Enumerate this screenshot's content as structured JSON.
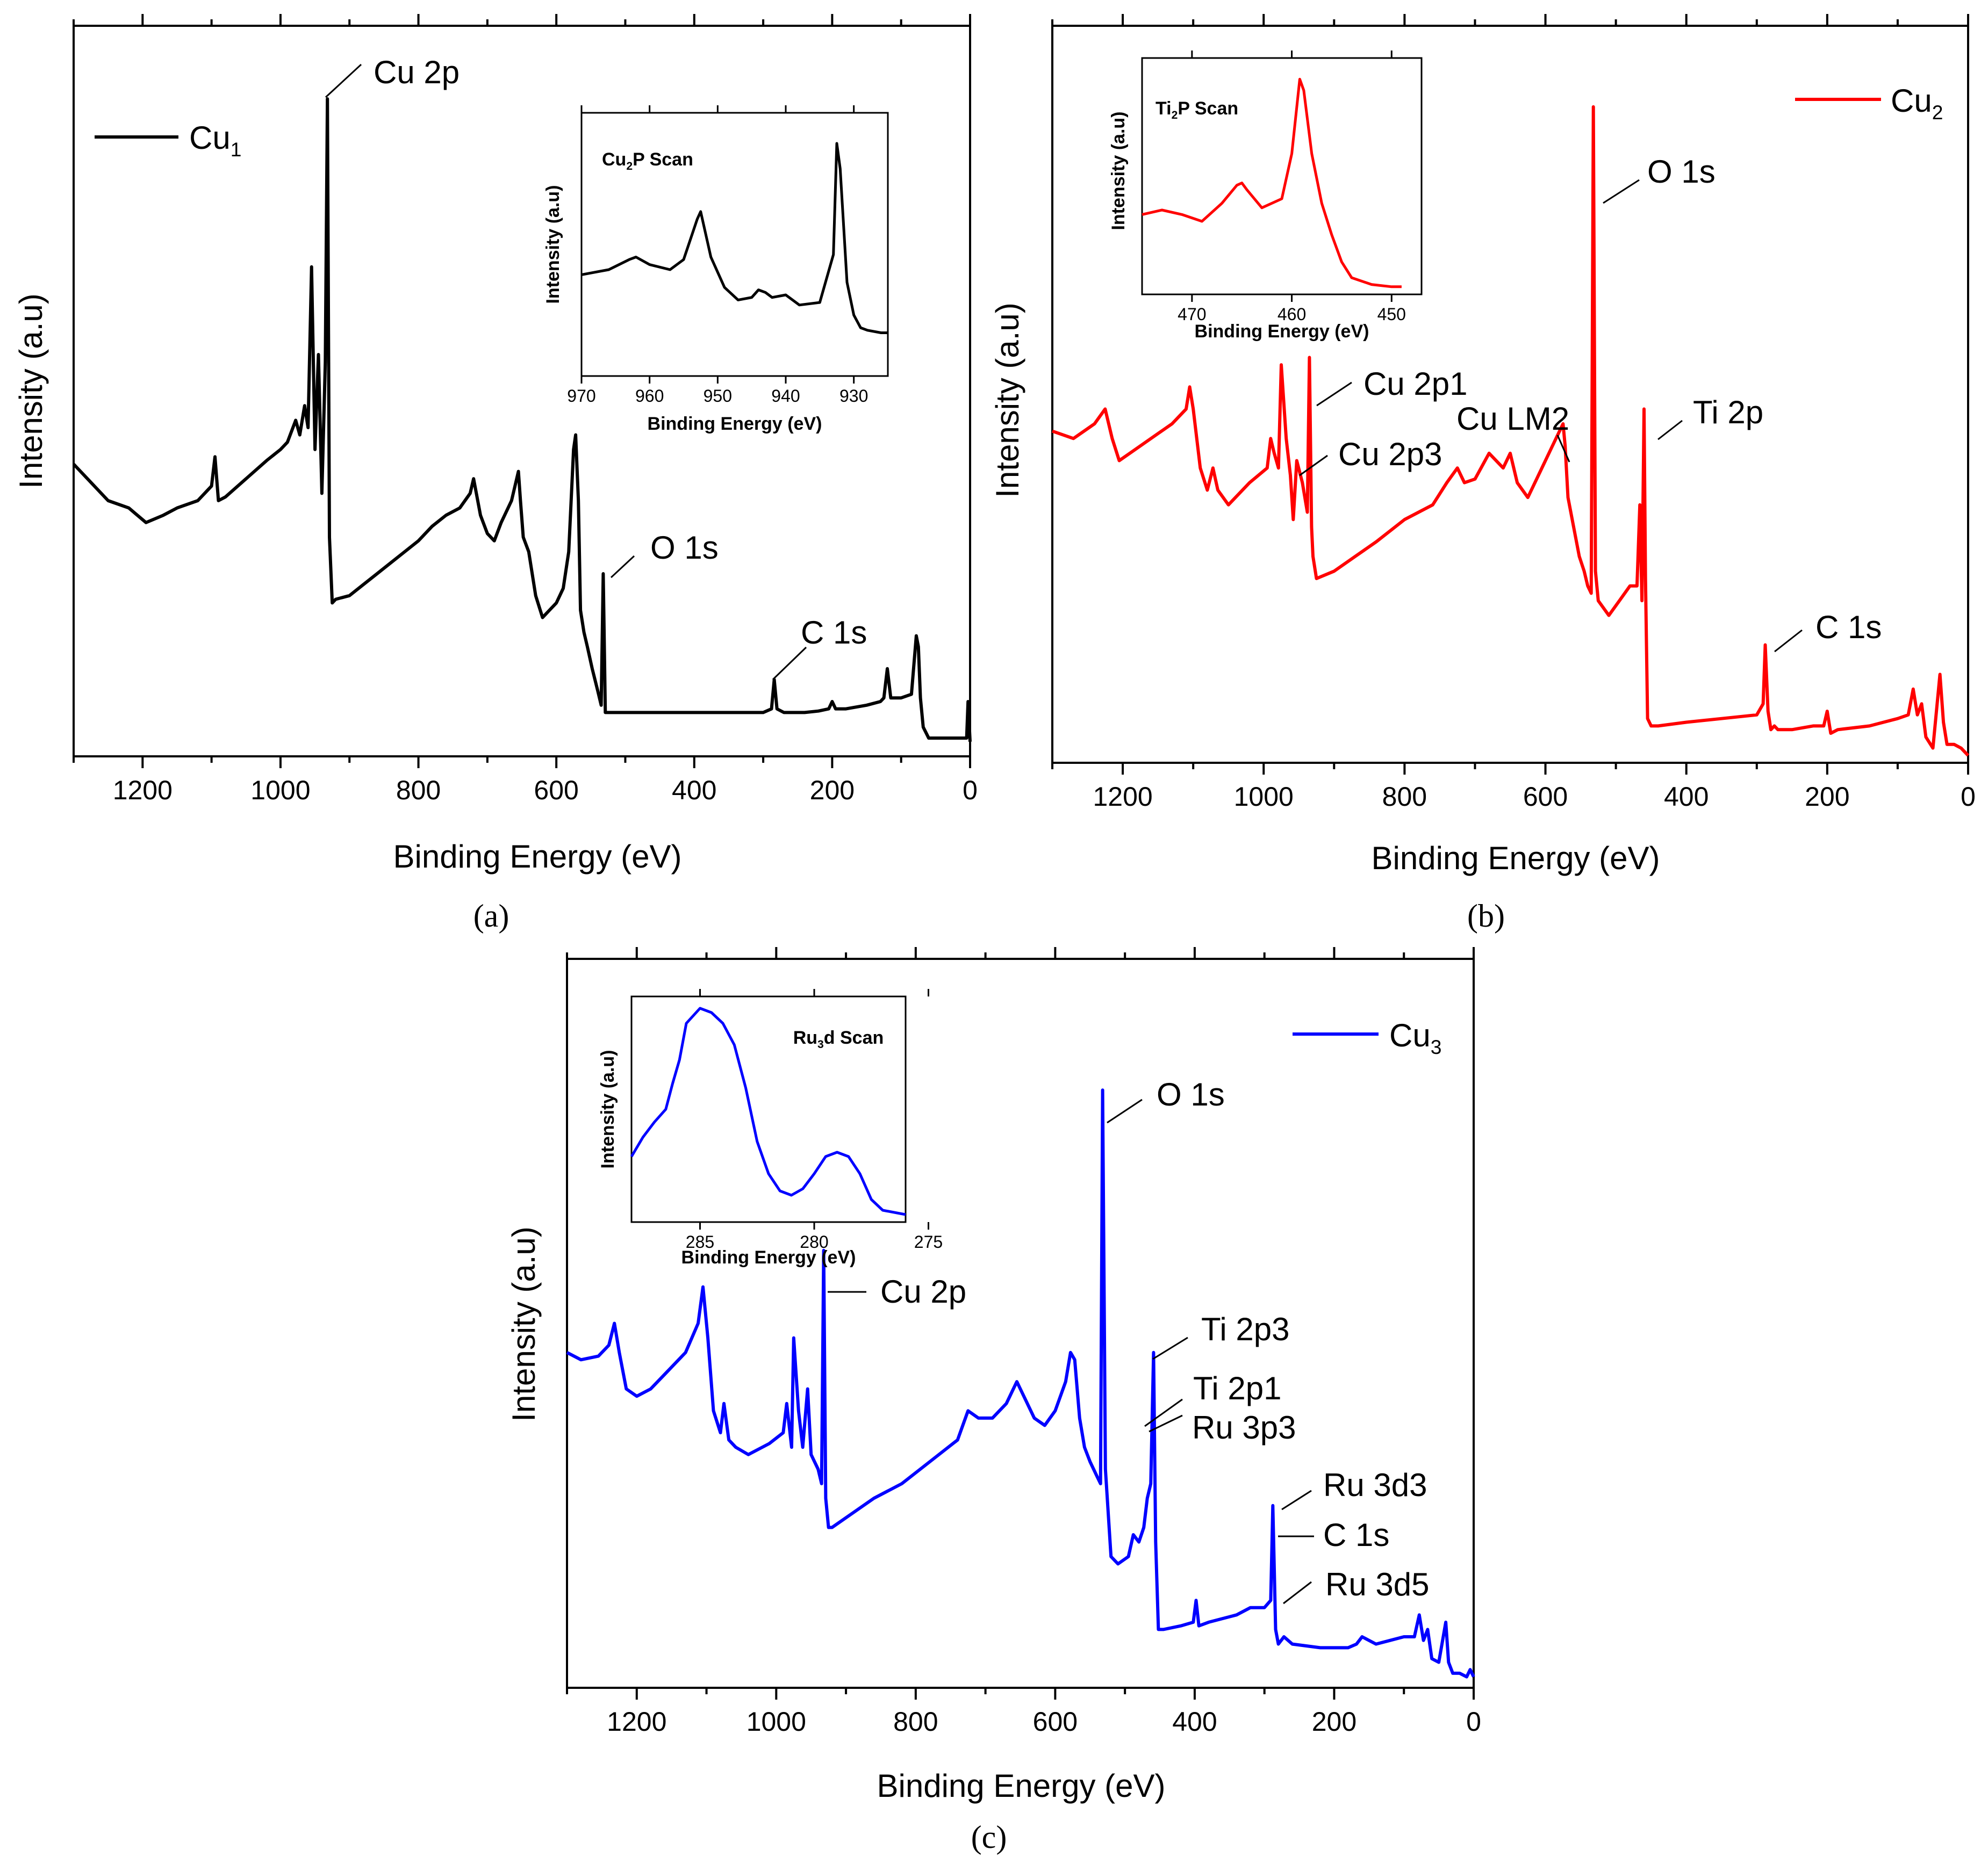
{
  "chart_data": [
    {
      "type": "line",
      "panel_label": "(a)",
      "xlabel": "Binding Energy (eV)",
      "ylabel": "Intensity (a.u)",
      "xlim": [
        1300,
        0
      ],
      "ylim": [
        0,
        100
      ],
      "xticks": [
        "1200",
        "1000",
        "800",
        "600",
        "400",
        "200",
        "0"
      ],
      "color": "#000000",
      "legend": {
        "base": "Cu",
        "sub": "1",
        "placement": "top-left"
      },
      "series": [
        {
          "name": "Cu1",
          "x": [
            1300,
            1280,
            1250,
            1220,
            1195,
            1170,
            1150,
            1120,
            1100,
            1095,
            1090,
            1080,
            1050,
            1020,
            1000,
            990,
            978,
            972,
            965,
            960,
            955,
            950,
            945,
            940,
            935,
            932,
            929,
            925,
            920,
            900,
            880,
            860,
            840,
            820,
            800,
            780,
            760,
            740,
            725,
            720,
            710,
            700,
            690,
            680,
            665,
            655,
            652,
            648,
            640,
            630,
            620,
            610,
            600,
            590,
            582,
            575,
            572,
            568,
            565,
            560,
            555,
            548,
            540,
            535,
            532,
            529,
            525,
            510,
            480,
            450,
            420,
            400,
            380,
            340,
            300,
            288,
            284,
            280,
            270,
            240,
            220,
            205,
            200,
            195,
            180,
            150,
            130,
            125,
            120,
            115,
            100,
            85,
            78,
            75,
            72,
            68,
            60,
            40,
            20,
            10,
            5,
            3,
            0
          ],
          "y": [
            40.0,
            38.0,
            35.0,
            34.0,
            32.0,
            33.0,
            34.0,
            35.0,
            37.0,
            41.0,
            35.0,
            35.5,
            38.0,
            40.5,
            42.0,
            43.0,
            46.0,
            44.0,
            48.0,
            45.0,
            67.0,
            42.0,
            55.0,
            36.0,
            54.0,
            90.0,
            30.0,
            21.0,
            21.5,
            22.0,
            23.5,
            25.0,
            26.5,
            28.0,
            29.5,
            31.5,
            33.0,
            34.0,
            36.0,
            38.0,
            33.0,
            30.5,
            29.5,
            32.0,
            35.0,
            39.0,
            35.0,
            30.0,
            28.0,
            22.0,
            19.0,
            20.0,
            21.0,
            23.0,
            28.0,
            42.0,
            44.0,
            35.0,
            20.0,
            17.0,
            15.0,
            12.0,
            9.0,
            7.0,
            25.0,
            6.0,
            6.0,
            6.0,
            6.0,
            6.0,
            6.0,
            6.0,
            6.0,
            6.0,
            6.0,
            6.5,
            10.5,
            6.5,
            6.0,
            6.0,
            6.2,
            6.5,
            7.5,
            6.5,
            6.5,
            7.0,
            7.5,
            8.0,
            12.0,
            8.0,
            8.0,
            8.5,
            16.5,
            15.0,
            8.0,
            4.0,
            2.5,
            2.5,
            2.5,
            2.5,
            2.5,
            7.5,
            2.0
          ]
        }
      ],
      "annotations": [
        "Cu 2p",
        "O 1s",
        "C 1s"
      ],
      "inset": {
        "title_base": "Cu",
        "title_sub": "2",
        "title_rest": "P Scan",
        "xlabel": "Binding Energy (eV)",
        "ylabel": "Intensity (a.u)",
        "xlim": [
          970,
          925
        ],
        "ylim": [
          0,
          100
        ],
        "xticks": [
          "970",
          "960",
          "950",
          "940",
          "930"
        ],
        "x": [
          970,
          966,
          963,
          962,
          960,
          957,
          955,
          953,
          952.5,
          951,
          949,
          947,
          945,
          944,
          943,
          942,
          940,
          938,
          935,
          933,
          932.5,
          932,
          931,
          930,
          929,
          928,
          926,
          925
        ],
        "y": [
          38,
          40,
          44,
          45,
          42,
          40,
          44,
          60,
          63,
          45,
          33,
          28,
          29,
          32,
          31,
          29,
          30,
          26,
          27,
          46,
          90,
          80,
          35,
          22,
          17,
          16,
          15,
          15
        ]
      }
    },
    {
      "type": "line",
      "panel_label": "(b)",
      "xlabel": "Binding Energy (eV)",
      "ylabel": "Intensity (a.u)",
      "xlim": [
        1300,
        0
      ],
      "ylim": [
        0,
        100
      ],
      "xticks": [
        "1200",
        "1000",
        "800",
        "600",
        "400",
        "200",
        "0"
      ],
      "color": "#ff0000",
      "legend": {
        "base": "Cu",
        "sub": "2",
        "placement": "top-right"
      },
      "series": [
        {
          "name": "Cu2",
          "x": [
            1300,
            1270,
            1240,
            1225,
            1215,
            1205,
            1190,
            1160,
            1130,
            1110,
            1105,
            1100,
            1090,
            1080,
            1072,
            1065,
            1050,
            1020,
            995,
            990,
            985,
            979,
            975,
            968,
            962,
            958,
            953,
            945,
            938,
            935,
            932,
            930,
            925,
            900,
            870,
            840,
            800,
            760,
            740,
            725,
            715,
            700,
            680,
            660,
            650,
            640,
            625,
            605,
            590,
            575,
            572,
            568,
            560,
            552,
            545,
            540,
            535,
            532,
            529,
            525,
            510,
            495,
            480,
            470,
            466,
            463,
            460,
            458,
            455,
            450,
            440,
            400,
            350,
            300,
            291,
            288,
            284,
            280,
            275,
            270,
            260,
            250,
            220,
            205,
            200,
            195,
            185,
            140,
            120,
            100,
            85,
            78,
            72,
            66,
            60,
            50,
            40,
            35,
            30,
            20,
            10,
            5,
            0
          ],
          "y": [
            45.0,
            44.0,
            46.0,
            48.0,
            44.0,
            41.0,
            42.0,
            44.0,
            46.0,
            48.0,
            51.0,
            48.0,
            40.0,
            37.0,
            40.0,
            37.0,
            35.0,
            38.0,
            40.0,
            44.0,
            42.0,
            40.0,
            54.0,
            44.0,
            39.0,
            33.0,
            41.0,
            38.0,
            34.0,
            55.0,
            32.0,
            28.0,
            25.0,
            26.0,
            28.0,
            30.0,
            33.0,
            35.0,
            38.0,
            40.0,
            38.0,
            38.5,
            42.0,
            40.0,
            42.0,
            38.0,
            36.0,
            40.0,
            43.0,
            46.0,
            43.0,
            36.0,
            32.0,
            28.0,
            26.0,
            24.0,
            23.0,
            89.0,
            26.0,
            22.0,
            20.0,
            22.0,
            24.0,
            24.0,
            35.0,
            22.0,
            48.0,
            25.0,
            6.0,
            5.0,
            5.0,
            5.5,
            6.0,
            6.5,
            8.0,
            16.0,
            7.0,
            4.5,
            5.0,
            4.5,
            4.5,
            4.5,
            5.0,
            5.0,
            7.0,
            4.0,
            4.5,
            5.0,
            5.5,
            6.0,
            6.5,
            10.0,
            6.5,
            8.0,
            3.5,
            2.0,
            12.0,
            5.5,
            2.5,
            2.5,
            2.0,
            1.5,
            1.0
          ]
        }
      ],
      "annotations": [
        "O 1s",
        "Cu 2p1",
        "Cu LM2",
        "Ti 2p",
        "Cu 2p3",
        "C 1s"
      ],
      "inset": {
        "title_base": "Ti",
        "title_sub": "2",
        "title_rest": "P Scan",
        "xlabel": "Binding Energy (eV)",
        "ylabel": "Intensity (a.u)",
        "xlim": [
          475,
          447
        ],
        "ylim": [
          0,
          100
        ],
        "xticks": [
          "470",
          "460",
          "450"
        ],
        "x": [
          475,
          473,
          471,
          469,
          467,
          465.5,
          465,
          464.5,
          463,
          461,
          460,
          459.2,
          458.8,
          458,
          457,
          456,
          455,
          454,
          452,
          450,
          449
        ],
        "y": [
          33,
          35,
          33,
          30,
          38,
          46,
          47,
          44,
          36,
          40,
          60,
          93,
          88,
          60,
          38,
          24,
          12,
          5,
          2,
          1,
          1
        ]
      }
    },
    {
      "type": "line",
      "panel_label": "(c)",
      "xlabel": "Binding Energy (eV)",
      "ylabel": "Intensity (a.u)",
      "xlim": [
        1300,
        0
      ],
      "ylim": [
        0,
        100
      ],
      "xticks": [
        "1200",
        "1000",
        "800",
        "600",
        "400",
        "200",
        "0"
      ],
      "color": "#0000ff",
      "legend": {
        "base": "Cu",
        "sub": "3",
        "placement": "top-right"
      },
      "series": [
        {
          "name": "Cu3",
          "x": [
            1300,
            1280,
            1255,
            1240,
            1232,
            1225,
            1215,
            1200,
            1180,
            1160,
            1130,
            1112,
            1105,
            1098,
            1090,
            1080,
            1075,
            1068,
            1058,
            1040,
            1010,
            990,
            985,
            978,
            975,
            968,
            962,
            955,
            950,
            940,
            935,
            932,
            929,
            925,
            920,
            890,
            860,
            820,
            780,
            740,
            725,
            710,
            690,
            670,
            655,
            645,
            630,
            615,
            600,
            585,
            578,
            572,
            565,
            558,
            550,
            545,
            540,
            535,
            532,
            528,
            520,
            510,
            495,
            488,
            480,
            473,
            468,
            463,
            459,
            456,
            452,
            445,
            420,
            402,
            398,
            394,
            380,
            340,
            320,
            300,
            291,
            288,
            284,
            280,
            276,
            272,
            260,
            220,
            180,
            168,
            160,
            140,
            120,
            100,
            85,
            78,
            72,
            66,
            60,
            50,
            40,
            36,
            30,
            20,
            10,
            5,
            0
          ],
          "y": [
            46.0,
            45.0,
            45.5,
            47.0,
            50.0,
            46.0,
            41.0,
            40.0,
            41.0,
            43.0,
            46.0,
            50.0,
            55.0,
            48.0,
            38.0,
            35.0,
            39.0,
            34.0,
            33.0,
            32.0,
            33.5,
            35.0,
            39.0,
            33.0,
            48.0,
            38.0,
            33.0,
            41.0,
            32.0,
            30.0,
            28.0,
            60.0,
            26.0,
            22.0,
            22.0,
            24.0,
            26.0,
            28.0,
            31.0,
            34.0,
            38.0,
            37.0,
            37.0,
            39.0,
            42.0,
            40.0,
            37.0,
            36.0,
            38.0,
            42.0,
            46.0,
            45.0,
            37.0,
            33.0,
            31.0,
            30.0,
            29.0,
            28.0,
            82.0,
            30.0,
            18.0,
            17.0,
            18.0,
            21.0,
            20.0,
            22.0,
            26.0,
            28.0,
            46.0,
            20.0,
            8.0,
            8.0,
            8.5,
            9.0,
            12.0,
            8.5,
            9.0,
            10.0,
            11.0,
            11.0,
            12.0,
            25.0,
            8.0,
            6.0,
            6.5,
            7.0,
            6.0,
            5.5,
            5.5,
            6.0,
            7.0,
            6.0,
            6.5,
            7.0,
            7.0,
            10.0,
            6.5,
            8.0,
            4.0,
            3.5,
            9.0,
            3.5,
            2.0,
            2.0,
            1.5,
            2.5,
            1.5
          ]
        }
      ],
      "annotations": [
        "O 1s",
        "Cu 2p",
        "Ti 2p3",
        "Ti 2p1",
        "Ru 3p3",
        "Ru 3d3",
        "C 1s",
        "Ru 3d5"
      ],
      "inset": {
        "title_base": "Ru",
        "title_sub": "3",
        "title_rest": "d Scan",
        "xlabel": "Binding Energy (eV)",
        "ylabel": "Intensity (a.u)",
        "xlim": [
          288,
          276
        ],
        "ylim": [
          0,
          100
        ],
        "xticks": [
          "285",
          "280",
          "275"
        ],
        "x": [
          288,
          287.5,
          287,
          286.5,
          286.2,
          285.9,
          285.6,
          285,
          284.5,
          284,
          283.5,
          283,
          282.5,
          282,
          281.5,
          281,
          280.5,
          280,
          279.5,
          279,
          278.5,
          278,
          277.5,
          277,
          276
        ],
        "y": [
          28,
          37,
          44,
          50,
          62,
          73,
          90,
          97,
          95,
          90,
          80,
          60,
          35,
          20,
          12,
          10,
          13,
          20,
          28,
          30,
          28,
          20,
          8,
          3,
          1
        ]
      }
    }
  ],
  "labels": {
    "a": {
      "ylabel": "Intensity (a.u)",
      "xlabel": "Binding Energy (eV)",
      "panel": "(a)",
      "legend_base": "Cu",
      "legend_sub": "1",
      "cu2p": "Cu 2p",
      "o1s": "O 1s",
      "c1s": "C 1s",
      "inset_title_base": "Cu",
      "inset_title_sub": "2",
      "inset_title_rest": "P Scan",
      "inset_ylabel": "Intensity (a.u)",
      "inset_xlabel": "Binding Energy (eV)",
      "inset_ticks": [
        "970",
        "960",
        "950",
        "940",
        "930"
      ]
    },
    "b": {
      "ylabel": "Intensity (a.u)",
      "xlabel": "Binding Energy (eV)",
      "panel": "(b)",
      "legend_base": "Cu",
      "legend_sub": "2",
      "o1s": "O 1s",
      "cu2p1": "Cu 2p1",
      "culm2": "Cu LM2",
      "ti2p": "Ti 2p",
      "cu2p3": "Cu 2p3",
      "c1s": "C 1s",
      "inset_title_base": "Ti",
      "inset_title_sub": "2",
      "inset_title_rest": "P Scan",
      "inset_ylabel": "Intensity (a.u)",
      "inset_xlabel": "Binding Energy (eV)",
      "inset_ticks": [
        "470",
        "460",
        "450"
      ]
    },
    "c": {
      "ylabel": "Intensity (a.u)",
      "xlabel": "Binding Energy (eV)",
      "panel": "(c)",
      "legend_base": "Cu",
      "legend_sub": "3",
      "o1s": "O 1s",
      "cu2p": "Cu 2p",
      "ti2p3": "Ti 2p3",
      "ti2p1": "Ti 2p1",
      "ru3p3": "Ru 3p3",
      "ru3d3": "Ru 3d3",
      "c1s": "C 1s",
      "ru3d5": "Ru 3d5",
      "inset_title_base": "Ru",
      "inset_title_sub": "3",
      "inset_title_rest": "d Scan",
      "inset_ylabel": "Intensity (a.u)",
      "inset_xlabel": "Binding Energy (eV)",
      "inset_ticks": [
        "285",
        "280",
        "275"
      ]
    },
    "main_ticks": [
      "1200",
      "1000",
      "800",
      "600",
      "400",
      "200",
      "0"
    ]
  }
}
